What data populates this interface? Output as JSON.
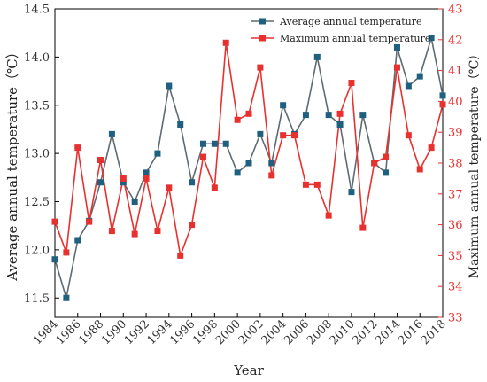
{
  "chart_data": {
    "type": "line",
    "xlabel": "Year",
    "ylabel_left": "Average annual temperature（℃）",
    "ylabel_right": "Maximum annual temperature（℃）",
    "x": [
      1984,
      1985,
      1986,
      1987,
      1988,
      1989,
      1990,
      1991,
      1992,
      1993,
      1994,
      1995,
      1996,
      1997,
      1998,
      1999,
      2000,
      2001,
      2002,
      2003,
      2004,
      2005,
      2006,
      2007,
      2008,
      2009,
      2010,
      2011,
      2012,
      2013,
      2014,
      2015,
      2016,
      2017,
      2018
    ],
    "x_tick_labels": [
      "1984",
      "1986",
      "1988",
      "1990",
      "1992",
      "1994",
      "1996",
      "1998",
      "2000",
      "2002",
      "2004",
      "2006",
      "2008",
      "2010",
      "2012",
      "2014",
      "2016",
      "2018"
    ],
    "ylim_left": [
      11.3,
      14.5
    ],
    "ylim_right": [
      33,
      43
    ],
    "y_ticks_left": [
      "11.5",
      "12.0",
      "12.5",
      "13.0",
      "13.5",
      "14.0",
      "14.5"
    ],
    "y_ticks_right": [
      "33",
      "34",
      "35",
      "36",
      "37",
      "38",
      "39",
      "40",
      "41",
      "42",
      "43"
    ],
    "legend_position": "top-right",
    "series": [
      {
        "name": "Average annual temperature",
        "axis": "left",
        "color": "#1f5f7f",
        "marker": "square",
        "values": [
          11.9,
          11.5,
          12.1,
          12.3,
          12.7,
          13.2,
          12.7,
          12.5,
          12.8,
          13.0,
          13.7,
          13.3,
          12.7,
          13.1,
          13.1,
          13.1,
          12.8,
          12.9,
          13.2,
          12.9,
          13.5,
          13.2,
          13.4,
          14.0,
          13.4,
          13.3,
          12.6,
          13.4,
          12.9,
          12.8,
          14.1,
          13.7,
          13.8,
          14.2,
          13.6
        ]
      },
      {
        "name": "Maximum annual temperature",
        "axis": "right",
        "color": "#e8312f",
        "marker": "square",
        "values": [
          36.1,
          35.1,
          38.5,
          36.1,
          38.1,
          35.8,
          37.5,
          35.7,
          37.5,
          35.8,
          37.2,
          35.0,
          36.0,
          38.2,
          37.2,
          41.9,
          39.4,
          39.6,
          41.1,
          37.6,
          38.9,
          38.9,
          37.3,
          37.3,
          36.3,
          39.6,
          40.6,
          35.9,
          38.0,
          38.2,
          41.1,
          38.9,
          37.8,
          38.5,
          39.9
        ]
      }
    ]
  }
}
